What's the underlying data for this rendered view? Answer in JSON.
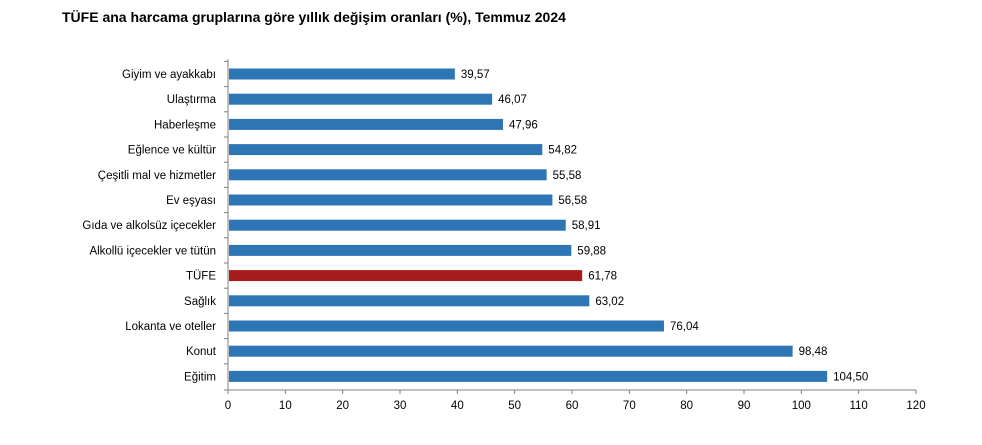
{
  "title": "TÜFE ana harcama gruplarına göre yıllık değişim oranları (%), Temmuz 2024",
  "chart_data": {
    "type": "bar",
    "orientation": "horizontal",
    "title": "TÜFE ana harcama gruplarına göre yıllık değişim oranları (%), Temmuz 2024",
    "categories": [
      "Giyim ve ayakkabı",
      "Ulaştırma",
      "Haberleşme",
      "Eğlence ve kültür",
      "Çeşitli mal ve hizmetler",
      "Ev eşyası",
      "Gıda ve alkolsüz içecekler",
      "Alkollü içecekler ve tütün",
      "TÜFE",
      "Sağlık",
      "Lokanta ve oteller",
      "Konut",
      "Eğitim"
    ],
    "values": [
      39.57,
      46.07,
      47.96,
      54.82,
      55.58,
      56.58,
      58.91,
      59.88,
      61.78,
      63.02,
      76.04,
      98.48,
      104.5
    ],
    "value_labels": [
      "39,57",
      "46,07",
      "47,96",
      "54,82",
      "55,58",
      "56,58",
      "58,91",
      "59,88",
      "61,78",
      "63,02",
      "76,04",
      "98,48",
      "104,50"
    ],
    "xlim": [
      0,
      120
    ],
    "xticks": [
      "0",
      "10",
      "20",
      "30",
      "40",
      "50",
      "60",
      "70",
      "80",
      "90",
      "100",
      "110",
      "120"
    ],
    "xlabel": "",
    "ylabel": "",
    "grid": false,
    "colors": {
      "bar": "#2e75b6",
      "highlight": "#a61c1c",
      "axis": "#7f7f7f"
    },
    "highlight_category": "TÜFE"
  }
}
